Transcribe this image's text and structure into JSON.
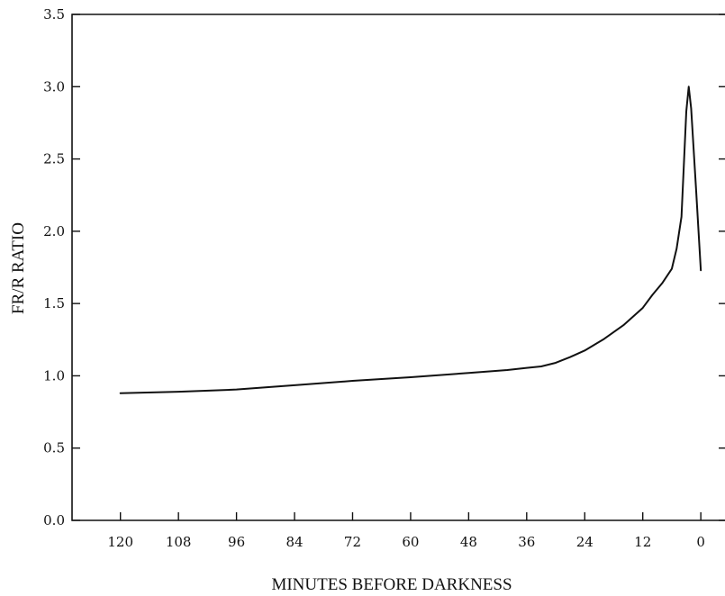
{
  "chart_data": {
    "type": "line",
    "title": "",
    "xlabel": "MINUTES BEFORE DARKNESS",
    "ylabel": "FR/R RATIO",
    "xlim": [
      130,
      -5
    ],
    "ylim": [
      0.0,
      3.5
    ],
    "x_reversed": true,
    "x_ticks": [
      120,
      108,
      96,
      84,
      72,
      60,
      48,
      36,
      24,
      12,
      0
    ],
    "x_tick_labels": [
      "120",
      "108",
      "96",
      "84",
      "72",
      "60",
      "48",
      "36",
      "24",
      "12",
      "0"
    ],
    "y_ticks": [
      0.0,
      0.5,
      1.0,
      1.5,
      2.0,
      2.5,
      3.0,
      3.5
    ],
    "y_tick_labels": [
      "0.0",
      "0.5",
      "1.0",
      "1.5",
      "2.0",
      "2.5",
      "3.0",
      "3.5"
    ],
    "grid": false,
    "series": [
      {
        "x": [
          120,
          108,
          96,
          90,
          84,
          72,
          60,
          48,
          40,
          36,
          33,
          30,
          27,
          24,
          20,
          16,
          12,
          10,
          8,
          6,
          5,
          4,
          3,
          2.5,
          2,
          1,
          0
        ],
        "y": [
          0.88,
          0.89,
          0.905,
          0.92,
          0.935,
          0.965,
          0.99,
          1.02,
          1.04,
          1.055,
          1.065,
          1.09,
          1.13,
          1.175,
          1.255,
          1.35,
          1.47,
          1.56,
          1.64,
          1.74,
          1.88,
          2.1,
          2.83,
          3.0,
          2.85,
          2.3,
          1.73
        ]
      }
    ]
  }
}
